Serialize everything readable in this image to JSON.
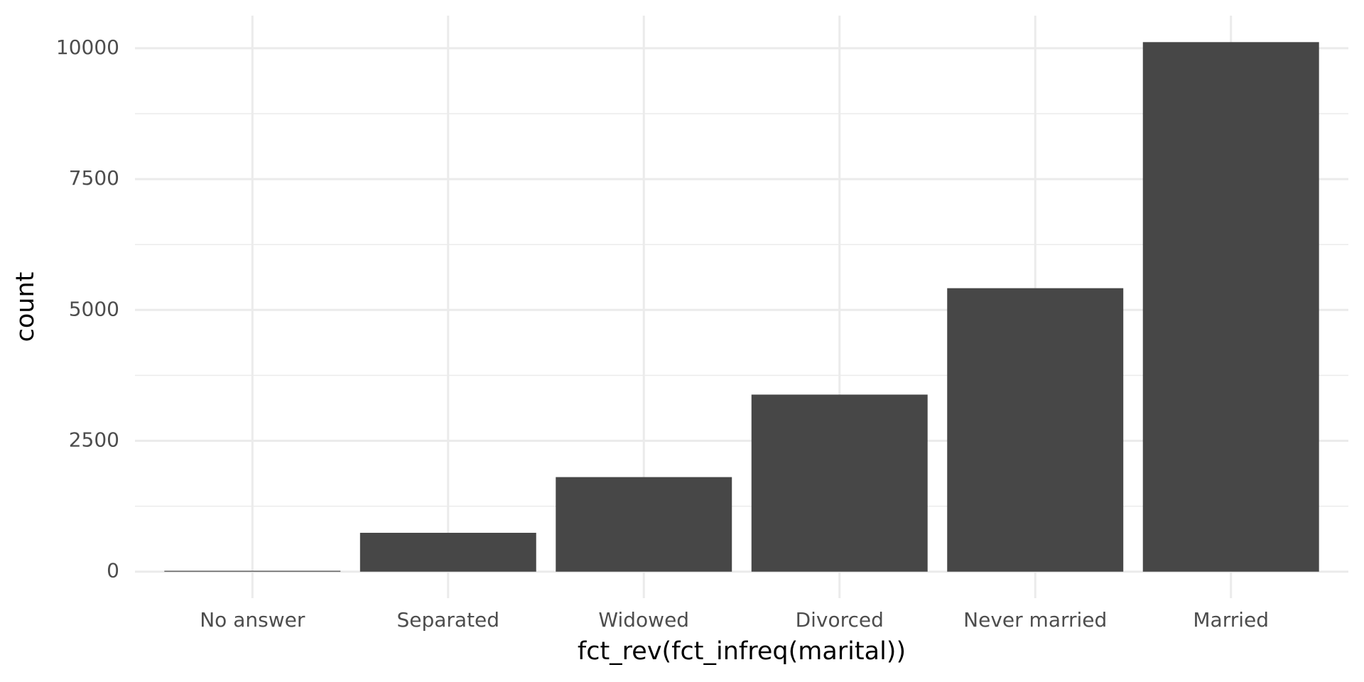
{
  "chart_data": {
    "type": "bar",
    "x_label": "fct_rev(fct_infreq(marital))",
    "y_label": "count",
    "categories": [
      "No answer",
      "Separated",
      "Widowed",
      "Divorced",
      "Never married",
      "Married"
    ],
    "values": [
      17,
      743,
      1807,
      3383,
      5416,
      10117
    ],
    "color": "#474747",
    "ylim": [
      -506,
      10623
    ],
    "yticks": [
      0,
      2500,
      5000,
      7500,
      10000
    ],
    "grid": true
  }
}
